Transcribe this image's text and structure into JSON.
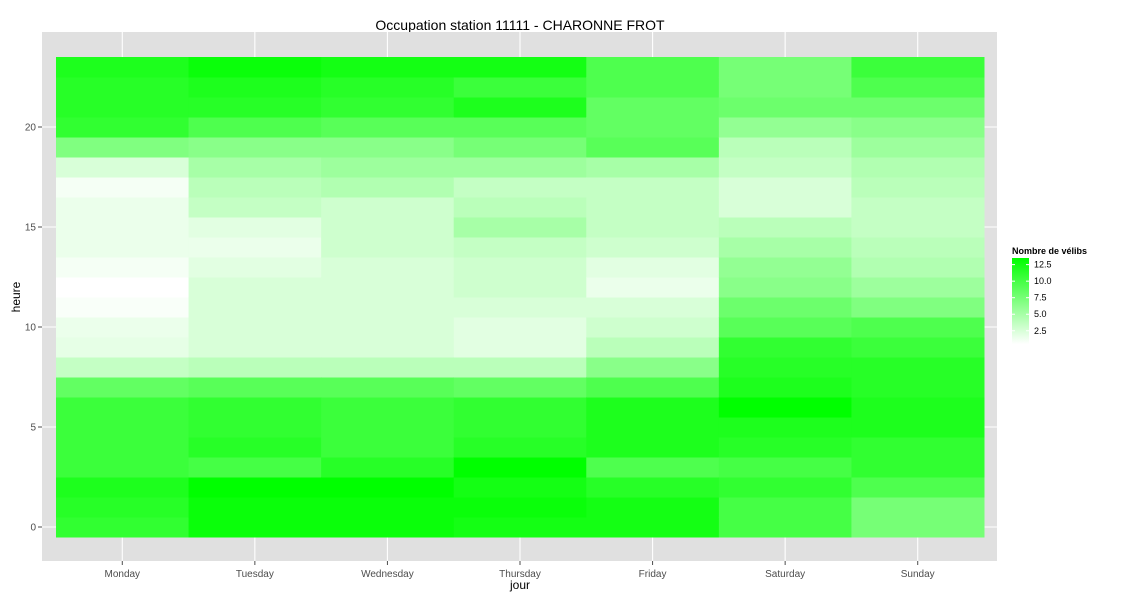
{
  "chart_data": {
    "type": "heatmap",
    "title": "Occupation station 11111 - CHARONNE FROT",
    "xlabel": "jour",
    "ylabel": "heure",
    "x_categories": [
      "Monday",
      "Tuesday",
      "Wednesday",
      "Thursday",
      "Friday",
      "Saturday",
      "Sunday"
    ],
    "y_values": [
      0,
      1,
      2,
      3,
      4,
      5,
      6,
      7,
      8,
      9,
      10,
      11,
      12,
      13,
      14,
      15,
      16,
      17,
      18,
      19,
      20,
      21,
      22,
      23
    ],
    "y_range": [
      -0.5,
      23.5
    ],
    "y_ticks": [
      0,
      5,
      10,
      15,
      20
    ],
    "y_tick_labels": [
      "0",
      "5",
      "10",
      "15",
      "20"
    ],
    "grid": true,
    "values_by_day": [
      [
        11.0,
        11.5,
        12.0,
        10.5,
        10.5,
        10.5,
        10.5,
        8.5,
        3.5,
        1.8,
        1.5,
        0.8,
        0.5,
        1.0,
        1.5,
        1.5,
        1.5,
        1.0,
        2.5,
        7.0,
        11.0,
        11.5,
        11.5,
        12.0
      ],
      [
        13.0,
        13.0,
        13.5,
        10.0,
        11.5,
        11.0,
        11.0,
        9.0,
        4.0,
        2.5,
        2.5,
        2.5,
        2.5,
        2.0,
        1.5,
        2.0,
        3.5,
        4.0,
        5.0,
        6.5,
        9.5,
        11.5,
        12.0,
        13.0
      ],
      [
        13.0,
        13.0,
        13.5,
        11.5,
        10.5,
        10.5,
        10.5,
        9.0,
        4.0,
        2.5,
        2.5,
        2.5,
        2.5,
        2.5,
        3.0,
        3.0,
        3.0,
        4.5,
        5.5,
        6.5,
        9.0,
        11.0,
        11.5,
        12.5
      ],
      [
        12.5,
        13.0,
        12.5,
        13.5,
        11.5,
        11.0,
        11.0,
        8.5,
        4.0,
        2.0,
        2.0,
        2.5,
        3.0,
        3.0,
        3.5,
        5.0,
        4.0,
        3.5,
        5.5,
        7.5,
        9.0,
        12.0,
        10.5,
        12.5
      ],
      [
        12.5,
        12.5,
        11.5,
        9.5,
        12.0,
        12.0,
        12.0,
        9.5,
        6.5,
        4.0,
        3.0,
        2.5,
        1.5,
        2.0,
        3.0,
        3.5,
        3.5,
        3.5,
        5.0,
        9.0,
        8.5,
        8.5,
        9.5,
        9.5
      ],
      [
        10.0,
        10.0,
        11.0,
        10.0,
        11.5,
        12.0,
        13.5,
        12.0,
        11.5,
        11.0,
        9.0,
        8.0,
        6.5,
        6.0,
        5.0,
        4.0,
        2.5,
        2.5,
        3.5,
        4.0,
        6.0,
        8.0,
        7.5,
        7.5
      ],
      [
        7.5,
        7.5,
        9.5,
        11.0,
        11.0,
        12.0,
        12.0,
        11.5,
        11.5,
        10.5,
        9.5,
        7.0,
        5.5,
        4.5,
        4.0,
        3.5,
        3.5,
        4.0,
        4.5,
        5.5,
        6.5,
        8.0,
        9.5,
        10.5
      ]
    ],
    "legend": {
      "title": "Nombre de vélibs",
      "placement": "right",
      "breaks": [
        12.5,
        10.0,
        7.5,
        5.0,
        2.5
      ],
      "break_labels": [
        "12.5",
        "10.0",
        "7.5",
        "5.0",
        "2.5"
      ],
      "min": 0.5,
      "max": 13.5
    },
    "colors": {
      "low": "#ffffff",
      "high": "#00ff00",
      "panel_background": "#e0e0e0",
      "grid_major": "#ffffff",
      "axis_text": "#4d4d4d"
    }
  }
}
